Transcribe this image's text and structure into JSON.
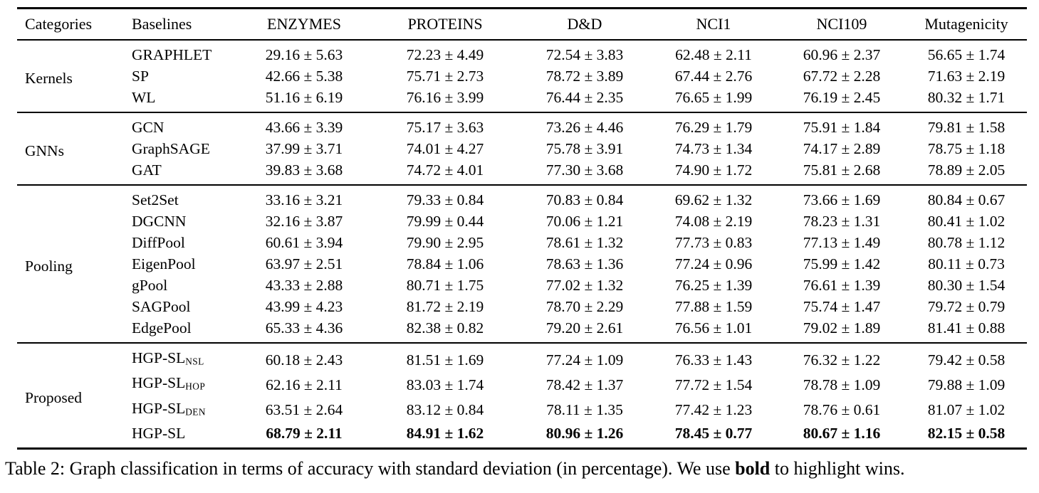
{
  "caption": {
    "prefix": "Table 2: Graph classification in terms of accuracy with standard deviation (in percentage). We use ",
    "bold_word": "bold",
    "suffix": " to highlight wins."
  },
  "table": {
    "columns": [
      "Categories",
      "Baselines",
      "ENZYMES",
      "PROTEINS",
      "D&D",
      "NCI1",
      "NCI109",
      "Mutagenicity"
    ],
    "plus_minus_symbol": "±",
    "sections": [
      {
        "category": "Kernels",
        "rows": [
          {
            "baseline": "GRAPHLET",
            "values": [
              "29.16 ± 5.63",
              "72.23 ± 4.49",
              "72.54 ± 3.83",
              "62.48 ± 2.11",
              "60.96 ± 2.37",
              "56.65 ± 1.74"
            ]
          },
          {
            "baseline": "SP",
            "values": [
              "42.66 ± 5.38",
              "75.71 ± 2.73",
              "78.72 ± 3.89",
              "67.44 ± 2.76",
              "67.72 ± 2.28",
              "71.63 ± 2.19"
            ]
          },
          {
            "baseline": "WL",
            "values": [
              "51.16 ± 6.19",
              "76.16 ± 3.99",
              "76.44 ± 2.35",
              "76.65 ± 1.99",
              "76.19 ± 2.45",
              "80.32 ± 1.71"
            ]
          }
        ]
      },
      {
        "category": "GNNs",
        "rows": [
          {
            "baseline": "GCN",
            "values": [
              "43.66 ± 3.39",
              "75.17 ± 3.63",
              "73.26 ± 4.46",
              "76.29 ± 1.79",
              "75.91 ± 1.84",
              "79.81 ± 1.58"
            ]
          },
          {
            "baseline": "GraphSAGE",
            "values": [
              "37.99 ± 3.71",
              "74.01 ± 4.27",
              "75.78 ± 3.91",
              "74.73 ± 1.34",
              "74.17 ± 2.89",
              "78.75 ± 1.18"
            ]
          },
          {
            "baseline": "GAT",
            "values": [
              "39.83 ± 3.68",
              "74.72 ± 4.01",
              "77.30 ± 3.68",
              "74.90 ± 1.72",
              "75.81 ± 2.68",
              "78.89 ± 2.05"
            ]
          }
        ]
      },
      {
        "category": "Pooling",
        "rows": [
          {
            "baseline": "Set2Set",
            "values": [
              "33.16 ± 3.21",
              "79.33 ± 0.84",
              "70.83 ± 0.84",
              "69.62 ± 1.32",
              "73.66 ± 1.69",
              "80.84 ± 0.67"
            ]
          },
          {
            "baseline": "DGCNN",
            "values": [
              "32.16 ± 3.87",
              "79.99 ± 0.44",
              "70.06 ± 1.21",
              "74.08 ± 2.19",
              "78.23 ± 1.31",
              "80.41 ± 1.02"
            ]
          },
          {
            "baseline": "DiffPool",
            "values": [
              "60.61 ± 3.94",
              "79.90 ± 2.95",
              "78.61 ± 1.32",
              "77.73 ± 0.83",
              "77.13 ± 1.49",
              "80.78 ± 1.12"
            ]
          },
          {
            "baseline": "EigenPool",
            "values": [
              "63.97 ± 2.51",
              "78.84 ± 1.06",
              "78.63 ± 1.36",
              "77.24 ± 0.96",
              "75.99 ± 1.42",
              "80.11 ± 0.73"
            ]
          },
          {
            "baseline": "gPool",
            "values": [
              "43.33 ± 2.88",
              "80.71 ± 1.75",
              "77.02 ± 1.32",
              "76.25 ± 1.39",
              "76.61 ± 1.39",
              "80.30 ± 1.54"
            ]
          },
          {
            "baseline": "SAGPool",
            "values": [
              "43.99 ± 4.23",
              "81.72 ± 2.19",
              "78.70 ± 2.29",
              "77.88 ± 1.59",
              "75.74 ± 1.47",
              "79.72 ± 0.79"
            ]
          },
          {
            "baseline": "EdgePool",
            "values": [
              "65.33 ± 4.36",
              "82.38 ± 0.82",
              "79.20 ± 2.61",
              "76.56 ± 1.01",
              "79.02 ± 1.89",
              "81.41 ± 0.88"
            ]
          }
        ]
      },
      {
        "category": "Proposed",
        "rows": [
          {
            "baseline": {
              "name": "HGP-SL",
              "sub": "NSL"
            },
            "values": [
              "60.18 ± 2.43",
              "81.51 ± 1.69",
              "77.24 ± 1.09",
              "76.33 ± 1.43",
              "76.32 ± 1.22",
              "79.42 ± 0.58"
            ]
          },
          {
            "baseline": {
              "name": "HGP-SL",
              "sub": "HOP"
            },
            "values": [
              "62.16 ± 2.11",
              "83.03 ± 1.74",
              "78.42 ± 1.37",
              "77.72 ± 1.54",
              "78.78 ± 1.09",
              "79.88 ± 1.09"
            ]
          },
          {
            "baseline": {
              "name": "HGP-SL",
              "sub": "DEN"
            },
            "values": [
              "63.51 ± 2.64",
              "83.12 ± 0.84",
              "78.11 ± 1.35",
              "77.42 ± 1.23",
              "78.76 ± 0.61",
              "81.07 ± 1.02"
            ]
          },
          {
            "baseline": "HGP-SL",
            "bold_values": true,
            "values": [
              "68.79 ± 2.11",
              "84.91 ± 1.62",
              "80.96 ± 1.26",
              "78.45 ± 0.77",
              "80.67 ± 1.16",
              "82.15 ± 0.58"
            ]
          }
        ]
      }
    ]
  }
}
